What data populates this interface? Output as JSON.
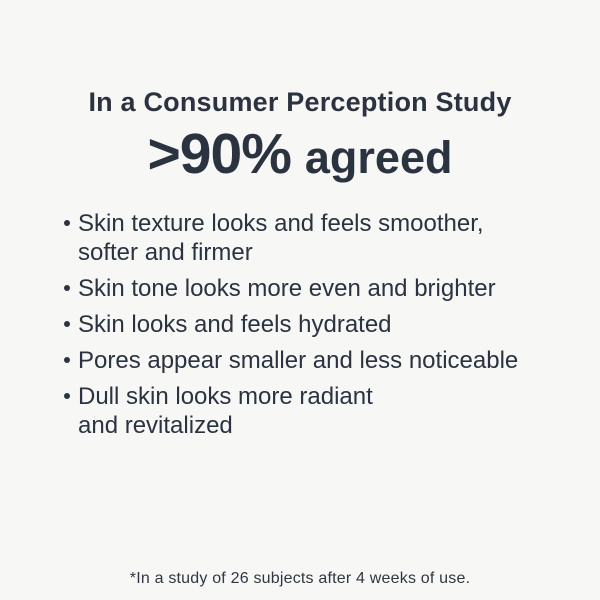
{
  "colors": {
    "background": "#f7f7f6",
    "text": "#2a333f"
  },
  "header": {
    "title": "In a Consumer Perception Study",
    "stat_value": ">90%",
    "stat_label": "agreed"
  },
  "bullets": [
    {
      "lines": [
        "Skin texture looks and feels smoother,",
        "softer and firmer"
      ]
    },
    {
      "lines": [
        "Skin tone looks more even and brighter"
      ]
    },
    {
      "lines": [
        "Skin looks and feels hydrated"
      ]
    },
    {
      "lines": [
        "Pores appear smaller and less noticeable"
      ]
    },
    {
      "lines": [
        "Dull skin looks more radiant",
        "and revitalized"
      ]
    }
  ],
  "footnote": "*In a study of 26 subjects after 4 weeks of use."
}
